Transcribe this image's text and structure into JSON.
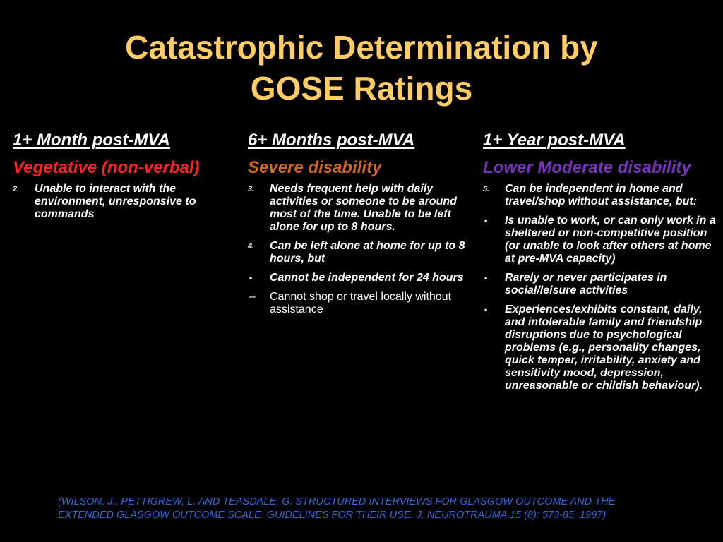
{
  "title": {
    "line1": "Catastrophic Determination by",
    "line2": "GOSE Ratings"
  },
  "columns": [
    {
      "heading": "1+ Month post-MVA",
      "subheading": "Vegetative (non-verbal)",
      "items": [
        {
          "marker": "2.",
          "text": "Unable to interact with the environment, unresponsive to commands",
          "style": "bold"
        }
      ]
    },
    {
      "heading": "6+ Months post-MVA",
      "subheading": "Severe disability",
      "items": [
        {
          "marker": "3.",
          "text": "Needs frequent help with daily activities or someone to be around most of the time. Unable to be left alone for up to 8 hours.",
          "style": "bold"
        },
        {
          "marker": "4.",
          "text": "Can be left alone at home for up to 8 hours, but",
          "style": "bold"
        },
        {
          "marker": "•",
          "text": "Cannot be independent for 24 hours",
          "style": "bold"
        },
        {
          "marker": "–",
          "text": "Cannot shop or travel locally without assistance",
          "style": "plain"
        }
      ]
    },
    {
      "heading": "1+ Year post-MVA",
      "subheading": "Lower Moderate disability",
      "items": [
        {
          "marker": "5.",
          "text": "Can be independent in home and travel/shop without assistance, but:",
          "style": "bold"
        },
        {
          "marker": "•",
          "text": "Is unable to work, or can only work in a sheltered or non-competitive position (or unable to look after others at home at pre-MVA capacity)",
          "style": "bold"
        },
        {
          "marker": "•",
          "text": "Rarely or never participates in social/leisure activities",
          "style": "bold"
        },
        {
          "marker": "•",
          "text": "Experiences/exhibits constant, daily, and intolerable family and friendship disruptions due to psychological problems (e.g., personality changes, quick temper, irritability, anxiety and sensitivity mood, depression, unreasonable or childish behaviour).",
          "style": "bold"
        }
      ]
    }
  ],
  "citation": "(WILSON, J., PETTIGREW, L. AND TEASDALE, G. STRUCTURED INTERVIEWS FOR GLASGOW OUTCOME AND THE EXTENDED GLASGOW OUTCOME SCALE. GUIDELINES FOR THEIR USE. J. NEUROTRAUMA 15 (8): 573-85. 1997)",
  "colors": {
    "background": "#000000",
    "title": "#FFCC66",
    "body_text": "#FFFFFF",
    "vegetative": "#FF2222",
    "severe": "#CC6622",
    "lower_moderate": "#7733BB",
    "citation": "#3366DD"
  }
}
